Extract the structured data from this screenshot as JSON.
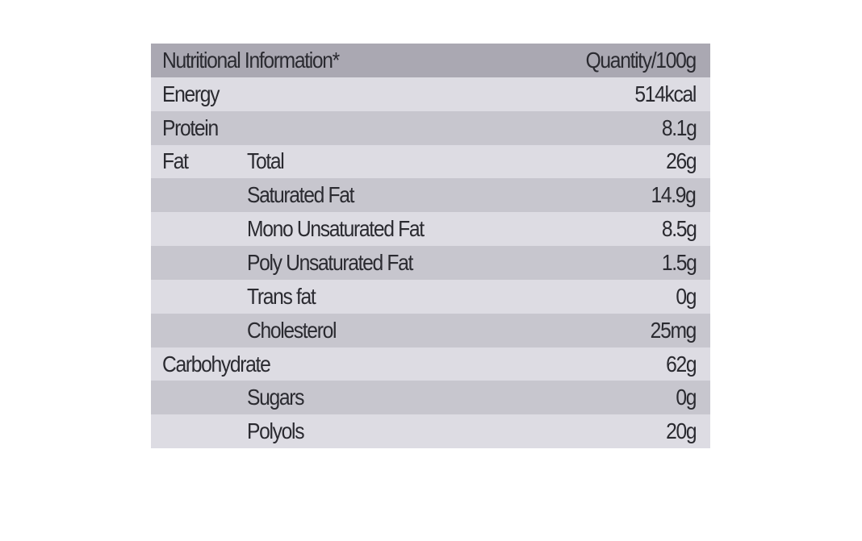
{
  "header": {
    "label": "Nutritional Information*",
    "quantity": "Quantity/100g"
  },
  "rows": [
    {
      "group": "Energy",
      "item": "",
      "value": "514kcal",
      "shade": "light"
    },
    {
      "group": "Protein",
      "item": "",
      "value": "8.1g",
      "shade": "dark"
    },
    {
      "group": "Fat",
      "item": "Total",
      "value": "26g",
      "shade": "light"
    },
    {
      "group": "",
      "item": "Saturated Fat",
      "value": "14.9g",
      "shade": "dark"
    },
    {
      "group": "",
      "item": "Mono Unsaturated Fat",
      "value": "8.5g",
      "shade": "light"
    },
    {
      "group": "",
      "item": "Poly Unsaturated Fat",
      "value": "1.5g",
      "shade": "dark"
    },
    {
      "group": "",
      "item": "Trans fat",
      "value": "0g",
      "shade": "light"
    },
    {
      "group": "",
      "item": "Cholesterol",
      "value": "25mg",
      "shade": "dark"
    },
    {
      "group": "Carbohydrate",
      "item": "",
      "value": "62g",
      "shade": "light"
    },
    {
      "group": "",
      "item": "Sugars",
      "value": "0g",
      "shade": "dark"
    },
    {
      "group": "",
      "item": "Polyols",
      "value": "20g",
      "shade": "light"
    }
  ],
  "colors": {
    "header": "#aaa8b2",
    "light_row": "#dddce3",
    "dark_row": "#c7c6ce",
    "text": "#2a2a30"
  }
}
